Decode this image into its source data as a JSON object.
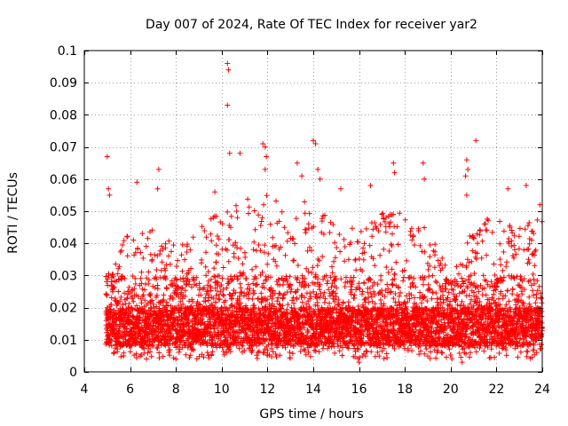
{
  "chart_data": {
    "type": "scatter",
    "title": "Day 007 of 2024, Rate Of TEC Index for receiver yar2",
    "xlabel": "GPS time / hours",
    "ylabel": "ROTI / TECUs",
    "xlim": [
      4,
      24
    ],
    "ylim": [
      0,
      0.1
    ],
    "x_ticks": [
      4,
      6,
      8,
      10,
      12,
      14,
      16,
      18,
      20,
      22,
      24
    ],
    "x_tick_labels": [
      "4",
      "6",
      "8",
      "10",
      "12",
      "14",
      "16",
      "18",
      "20",
      "22",
      "24"
    ],
    "y_ticks": [
      0,
      0.01,
      0.02,
      0.03,
      0.04,
      0.05,
      0.06,
      0.07,
      0.08,
      0.09,
      0.1
    ],
    "y_tick_labels": [
      "0",
      "0.01",
      "0.02",
      "0.03",
      "0.04",
      "0.05",
      "0.06",
      "0.07",
      "0.08",
      "0.09",
      "0.1"
    ],
    "grid": true,
    "marker": "+",
    "color": "#ff0000",
    "series": [
      {
        "name": "ROTI",
        "approx_envelope": {
          "x_start": 4.95,
          "x_end": 24.0,
          "x_step": 0.025,
          "bulk_range": [
            0.004,
            0.03
          ],
          "upper_envelope": [
            {
              "x": 5.0,
              "y": 0.03
            },
            {
              "x": 6.0,
              "y": 0.045
            },
            {
              "x": 7.0,
              "y": 0.045
            },
            {
              "x": 8.0,
              "y": 0.04
            },
            {
              "x": 9.0,
              "y": 0.045
            },
            {
              "x": 10.0,
              "y": 0.05
            },
            {
              "x": 11.0,
              "y": 0.055
            },
            {
              "x": 12.0,
              "y": 0.055
            },
            {
              "x": 13.0,
              "y": 0.055
            },
            {
              "x": 14.0,
              "y": 0.055
            },
            {
              "x": 15.0,
              "y": 0.045
            },
            {
              "x": 16.0,
              "y": 0.045
            },
            {
              "x": 17.0,
              "y": 0.05
            },
            {
              "x": 18.0,
              "y": 0.05
            },
            {
              "x": 19.0,
              "y": 0.045
            },
            {
              "x": 20.0,
              "y": 0.03
            },
            {
              "x": 21.0,
              "y": 0.045
            },
            {
              "x": 22.0,
              "y": 0.05
            },
            {
              "x": 23.0,
              "y": 0.045
            },
            {
              "x": 24.0,
              "y": 0.05
            }
          ]
        },
        "notable_points": [
          {
            "x": 5.0,
            "y": 0.067
          },
          {
            "x": 5.05,
            "y": 0.057
          },
          {
            "x": 5.1,
            "y": 0.055
          },
          {
            "x": 6.3,
            "y": 0.059
          },
          {
            "x": 7.25,
            "y": 0.063
          },
          {
            "x": 7.2,
            "y": 0.057
          },
          {
            "x": 9.7,
            "y": 0.056
          },
          {
            "x": 10.25,
            "y": 0.096
          },
          {
            "x": 10.3,
            "y": 0.094
          },
          {
            "x": 10.25,
            "y": 0.083
          },
          {
            "x": 10.35,
            "y": 0.068
          },
          {
            "x": 10.8,
            "y": 0.068
          },
          {
            "x": 11.8,
            "y": 0.071
          },
          {
            "x": 11.9,
            "y": 0.07
          },
          {
            "x": 11.95,
            "y": 0.067
          },
          {
            "x": 11.9,
            "y": 0.063
          },
          {
            "x": 13.3,
            "y": 0.065
          },
          {
            "x": 13.5,
            "y": 0.061
          },
          {
            "x": 14.0,
            "y": 0.072
          },
          {
            "x": 14.1,
            "y": 0.071
          },
          {
            "x": 14.2,
            "y": 0.063
          },
          {
            "x": 14.3,
            "y": 0.06
          },
          {
            "x": 15.2,
            "y": 0.057
          },
          {
            "x": 16.5,
            "y": 0.058
          },
          {
            "x": 17.5,
            "y": 0.065
          },
          {
            "x": 17.55,
            "y": 0.062
          },
          {
            "x": 18.8,
            "y": 0.065
          },
          {
            "x": 18.85,
            "y": 0.06
          },
          {
            "x": 20.7,
            "y": 0.066
          },
          {
            "x": 20.75,
            "y": 0.063
          },
          {
            "x": 20.65,
            "y": 0.061
          },
          {
            "x": 20.7,
            "y": 0.055
          },
          {
            "x": 21.1,
            "y": 0.072
          },
          {
            "x": 22.5,
            "y": 0.057
          },
          {
            "x": 23.3,
            "y": 0.058
          },
          {
            "x": 23.9,
            "y": 0.052
          },
          {
            "x": 16.0,
            "y": 0.003
          },
          {
            "x": 20.5,
            "y": 0.003
          },
          {
            "x": 8.0,
            "y": 0.004
          }
        ]
      }
    ]
  }
}
